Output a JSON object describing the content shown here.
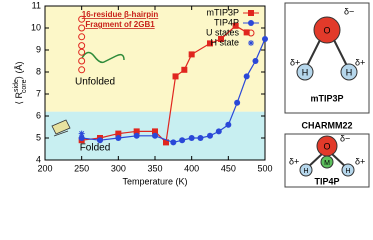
{
  "chart_data": {
    "type": "scatter-line",
    "x_label": "Temperature (K)",
    "y_label_parts": [
      "⟨ R",
      "side",
      "core",
      "⟩ (Å)"
    ],
    "annotations": [
      "16-residue β-hairpin",
      "Fragment of 2GB1",
      "Unfolded",
      "Folded"
    ],
    "xlim": [
      200,
      500
    ],
    "xticks": [
      200,
      250,
      300,
      350,
      400,
      450,
      500
    ],
    "ylim": [
      4,
      11
    ],
    "yticks": [
      4,
      5,
      6,
      7,
      8,
      9,
      10,
      11
    ],
    "bands": [
      {
        "from": 4,
        "to": 6.2,
        "color": "#c8eff1"
      },
      {
        "from": 6.2,
        "to": 11,
        "color": "#fcf7c8"
      }
    ],
    "legend": "upper right",
    "series": [
      {
        "name": "mTIP3P",
        "color": "#e0261f",
        "marker": "square",
        "line": true,
        "x": [
          250,
          275,
          300,
          325,
          350,
          365,
          378,
          390,
          400,
          425,
          440,
          460,
          475
        ],
        "values": [
          4.9,
          5.0,
          5.2,
          5.3,
          5.3,
          4.8,
          7.8,
          8.1,
          8.8,
          9.3,
          9.5,
          10.1,
          9.8
        ]
      },
      {
        "name": "TIP4P",
        "color": "#2a48d8",
        "marker": "circle",
        "line": true,
        "x": [
          250,
          275,
          300,
          325,
          350,
          375,
          387,
          400,
          412,
          425,
          437,
          450,
          462,
          475,
          487,
          500
        ],
        "values": [
          5.0,
          4.9,
          5.0,
          5.1,
          5.1,
          4.8,
          4.9,
          5.0,
          5.0,
          5.1,
          5.3,
          5.6,
          6.6,
          7.8,
          8.5,
          9.5
        ]
      },
      {
        "name": "U states",
        "color": "#e0261f",
        "marker": "open-circle",
        "line": false,
        "x": [
          250,
          250,
          250,
          250,
          250,
          250,
          250
        ],
        "values": [
          10.4,
          10.0,
          9.6,
          9.2,
          8.9,
          8.5,
          8.1
        ]
      },
      {
        "name": "H state",
        "color": "#2a48d8",
        "marker": "asterisk",
        "line": false,
        "x": [
          250
        ],
        "values": [
          5.2
        ]
      }
    ]
  },
  "diagram": {
    "top": {
      "labels": [
        "δ−",
        "δ+",
        "δ+",
        "O",
        "H",
        "H"
      ],
      "model": "mTIP3P"
    },
    "caption": "CHARMM22",
    "bottom": {
      "labels": [
        "δ−",
        "δ+",
        "δ+",
        "O",
        "M",
        "H",
        "H"
      ],
      "model": "TIP4P"
    }
  }
}
